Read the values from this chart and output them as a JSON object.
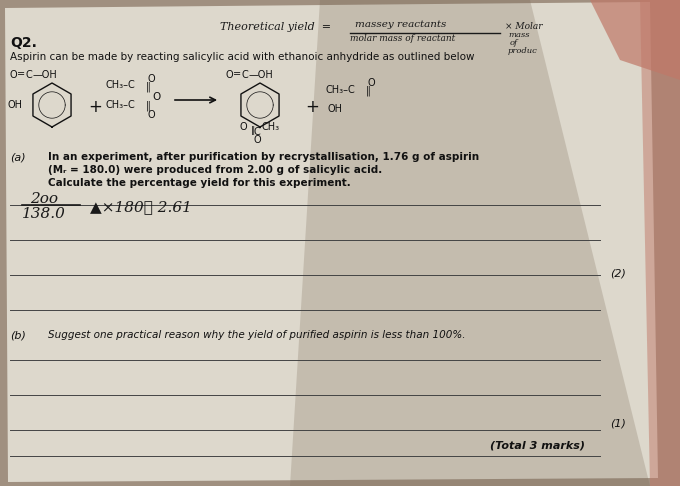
{
  "bg_color": "#a09080",
  "paper_color": "#ddd8cc",
  "paper_color2": "#c8c0b0",
  "shadow_color": "#7a6a58",
  "q2_label": "Q2.",
  "intro_text": "Aspirin can be made by reacting salicylic acid with ethanoic anhydride as outlined below",
  "handwritten_top_left": "Theoretical yield  =",
  "handwritten_numerator": "massey reactants",
  "handwritten_denominator": "molar mass of reactant",
  "handwritten_right1": "× Molar",
  "handwritten_right2": "mass",
  "handwritten_right3": "of",
  "handwritten_right4": "produc",
  "part_a_label": "(a)",
  "part_a_line1": "In an experiment, after purification by recrystallisation, 1.76 g of aspirin",
  "part_a_line2": "(Mᵣ = 180.0) were produced from 2.00 g of salicylic acid.",
  "part_a_line3": "Calculate the percentage yield for this experiment.",
  "calc_num": "2​​​​​​​​​​​​00",
  "calc_denom": "138.0",
  "calc_rest": "▲×180∶ 2.61",
  "marks_a": "(2)",
  "part_b_label": "(b)",
  "part_b_text": "Suggest one practical reason why the yield of purified aspirin is less than 100%.",
  "marks_b": "(1)",
  "total_marks": "(Total 3 marks)",
  "line_color": "#444444",
  "text_color": "#111111",
  "hw_color": "#1a1a1a",
  "finger_color": "#c07868"
}
